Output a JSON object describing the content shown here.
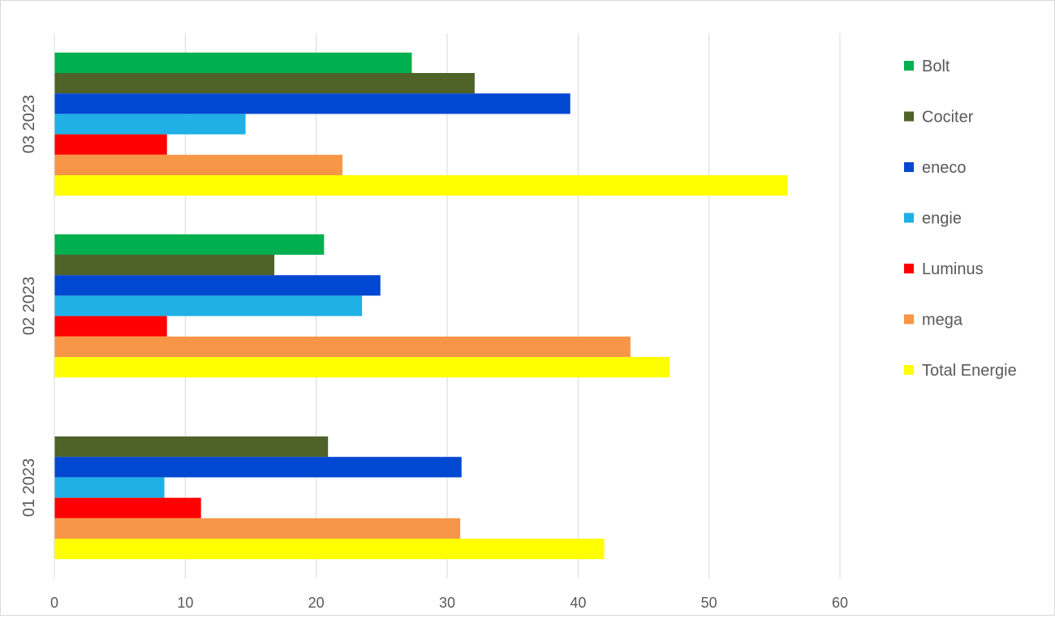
{
  "chart_data": {
    "type": "bar",
    "orientation": "horizontal",
    "title": "",
    "xlabel": "",
    "ylabel": "",
    "xlim": [
      0,
      60
    ],
    "x_ticks": [
      0,
      10,
      20,
      30,
      40,
      50,
      60
    ],
    "grid": true,
    "legend_position": "right",
    "categories": [
      "01 2023",
      "02 2023",
      "03 2023"
    ],
    "series": [
      {
        "name": "Bolt",
        "color": "#00b050",
        "values": [
          null,
          20.6,
          27.3
        ]
      },
      {
        "name": "Cociter",
        "color": "#4f6228",
        "values": [
          20.9,
          16.8,
          32.1
        ]
      },
      {
        "name": "eneco",
        "color": "#0047d1",
        "values": [
          31.1,
          24.9,
          39.4
        ]
      },
      {
        "name": "engie",
        "color": "#1fb0e6",
        "values": [
          8.4,
          23.5,
          14.6
        ]
      },
      {
        "name": "Luminus",
        "color": "#ff0000",
        "values": [
          11.2,
          8.6,
          8.6
        ]
      },
      {
        "name": "mega",
        "color": "#f79646",
        "values": [
          31.0,
          44.0,
          22.0
        ]
      },
      {
        "name": "Total Energie",
        "color": "#ffff00",
        "values": [
          42.0,
          47.0,
          56.0
        ]
      }
    ]
  }
}
